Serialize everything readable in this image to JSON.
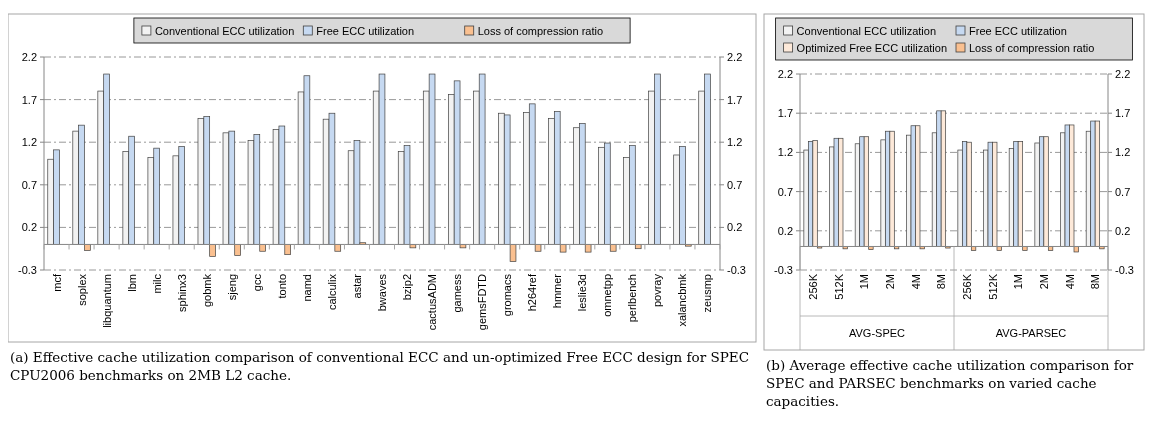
{
  "chart_data": [
    {
      "type": "bar",
      "title": "(a) Effective cache utilization comparison of conventional ECC and un-optimized Free ECC design for SPEC CPU2006 benchmarks on 2MB L2 cache.",
      "categories": [
        "mcf",
        "soplex",
        "libquantum",
        "lbm",
        "milc",
        "sphinx3",
        "gobmk",
        "sjeng",
        "gcc",
        "tonto",
        "namd",
        "calculix",
        "astar",
        "bwaves",
        "bzip2",
        "cactusADM",
        "gamess",
        "gemsFDTD",
        "gromacs",
        "h264ref",
        "hmmer",
        "leslie3d",
        "omnetpp",
        "perlbench",
        "povray",
        "xalancbmk",
        "zeusmp"
      ],
      "series": [
        {
          "name": "Conventional ECC utilization",
          "color": "#f2f2f2",
          "values": [
            1.0,
            1.33,
            1.8,
            1.09,
            1.02,
            1.04,
            1.48,
            1.31,
            1.22,
            1.35,
            1.79,
            1.47,
            1.1,
            1.8,
            1.09,
            1.8,
            1.76,
            1.8,
            1.54,
            1.55,
            1.48,
            1.37,
            1.14,
            1.02,
            1.8,
            1.05,
            1.8
          ]
        },
        {
          "name": "Free ECC utilization",
          "color": "#c6d9f1",
          "values": [
            1.11,
            1.4,
            2.0,
            1.27,
            1.13,
            1.15,
            1.5,
            1.33,
            1.29,
            1.39,
            1.98,
            1.54,
            1.22,
            2.0,
            1.16,
            2.0,
            1.92,
            2.0,
            1.52,
            1.65,
            1.56,
            1.42,
            1.19,
            1.16,
            2.0,
            1.15,
            2.0
          ]
        },
        {
          "name": "Loss of compression ratio",
          "color": "#fac090",
          "values": [
            0,
            -0.07,
            0,
            0,
            0,
            0,
            -0.14,
            -0.13,
            -0.08,
            -0.12,
            0,
            -0.08,
            0.02,
            0,
            -0.04,
            0,
            -0.04,
            0,
            -0.2,
            -0.08,
            -0.09,
            -0.09,
            -0.08,
            -0.05,
            0,
            -0.02,
            0
          ]
        }
      ],
      "ylim": [
        -0.3,
        2.2
      ],
      "yticks": [
        2.2,
        1.7,
        1.2,
        0.7,
        0.2,
        -0.3
      ],
      "y2lim": [
        -0.3,
        2.2
      ],
      "y2ticks": [
        2.2,
        1.7,
        1.2,
        0.7,
        0.2,
        -0.3
      ],
      "grid": "y",
      "legend": "top"
    },
    {
      "type": "bar",
      "title": "(b) Average effective cache utilization comparison for SPEC and PARSEC benchmarks on varied cache capacities.",
      "categories": [
        "256K",
        "512K",
        "1M",
        "2M",
        "4M",
        "8M",
        "256K",
        "512K",
        "1M",
        "2M",
        "4M",
        "8M"
      ],
      "annotations": [
        "AVG-SPEC",
        "AVG-PARSEC"
      ],
      "series": [
        {
          "name": "Conventional ECC utilization",
          "color": "#f2f2f2",
          "values": [
            1.23,
            1.27,
            1.31,
            1.36,
            1.42,
            1.45,
            1.23,
            1.23,
            1.25,
            1.32,
            1.45,
            1.47
          ]
        },
        {
          "name": "Free ECC utilization",
          "color": "#c6d9f1",
          "values": [
            1.34,
            1.38,
            1.4,
            1.47,
            1.54,
            1.73,
            1.34,
            1.33,
            1.34,
            1.4,
            1.55,
            1.6
          ]
        },
        {
          "name": "Optimized Free ECC utilization",
          "color": "#fde9d9",
          "values": [
            1.35,
            1.38,
            1.4,
            1.47,
            1.54,
            1.73,
            1.33,
            1.33,
            1.34,
            1.4,
            1.55,
            1.6
          ]
        },
        {
          "name": "Loss of compression ratio",
          "color": "#fac090",
          "values": [
            -0.02,
            -0.03,
            -0.04,
            -0.03,
            -0.03,
            -0.02,
            -0.05,
            -0.05,
            -0.05,
            -0.05,
            -0.07,
            -0.03
          ]
        }
      ],
      "ylim": [
        -0.3,
        2.2
      ],
      "yticks": [
        2.2,
        1.7,
        1.2,
        0.7,
        0.2,
        -0.3
      ],
      "y2lim": [
        -0.3,
        2.2
      ],
      "y2ticks": [
        2.2,
        1.7,
        1.2,
        0.7,
        0.2,
        -0.3
      ],
      "grid": "y",
      "legend": "top"
    }
  ]
}
